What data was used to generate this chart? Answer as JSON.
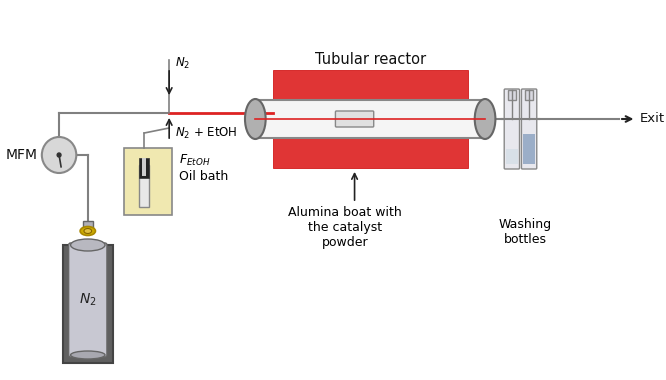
{
  "title": "Tubular reactor",
  "bg_color": "#ffffff",
  "label_MFM": "MFM",
  "label_N2_gas": "N$_2$",
  "label_N2_arrow": "N$_2$",
  "label_N2_EtOH": "N$_2$ + EtOH",
  "label_FEtOH_main": "F",
  "label_FEtOH_sub": "EtOH",
  "label_oil_bath": "Oil bath",
  "label_alumina": "Alumina boat with\nthe catalyst\npowder",
  "label_washing": "Washing\nbottles",
  "label_exit": "Exit",
  "reactor_red": "#e03535",
  "reactor_body": "#f2f2f2",
  "reactor_cap": "#b0b0b0",
  "oil_bath_fill": "#f0e8b0",
  "pipe_color": "#808080",
  "red_pipe": "#dd2222",
  "bottle_glass": "#e8e8ee",
  "bottle_liquid": "#9baec8",
  "cyl_body": "#c8c8d2",
  "cyl_valve": "#ccaa00",
  "gauge_color": "#d8d8d8"
}
